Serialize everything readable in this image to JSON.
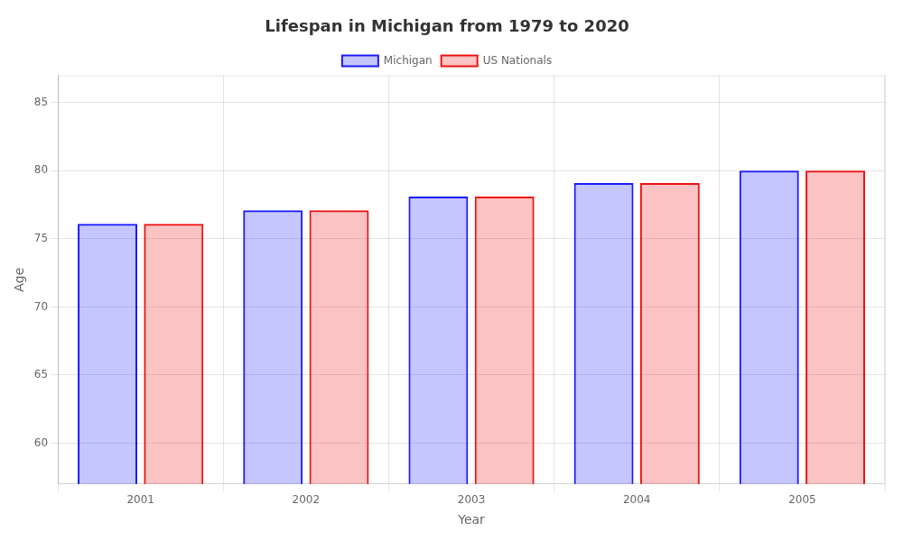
{
  "chart_data": {
    "type": "bar",
    "title": "Lifespan in Michigan from 1979 to 2020",
    "x_label": "Year",
    "y_label": "Age",
    "categories": [
      "2001",
      "2002",
      "2003",
      "2004",
      "2005"
    ],
    "series": [
      {
        "name": "Michigan",
        "color": "#1a1aff",
        "values": [
          76.1,
          77.1,
          78.1,
          79.1,
          80.0
        ]
      },
      {
        "name": "US Nationals",
        "color": "#ee1111",
        "values": [
          76.1,
          77.1,
          78.1,
          79.1,
          80.0
        ]
      }
    ],
    "ylim": [
      57,
      87
    ],
    "yticks": [
      60,
      65,
      70,
      75,
      80,
      85
    ],
    "grid": true,
    "legend": "top"
  }
}
